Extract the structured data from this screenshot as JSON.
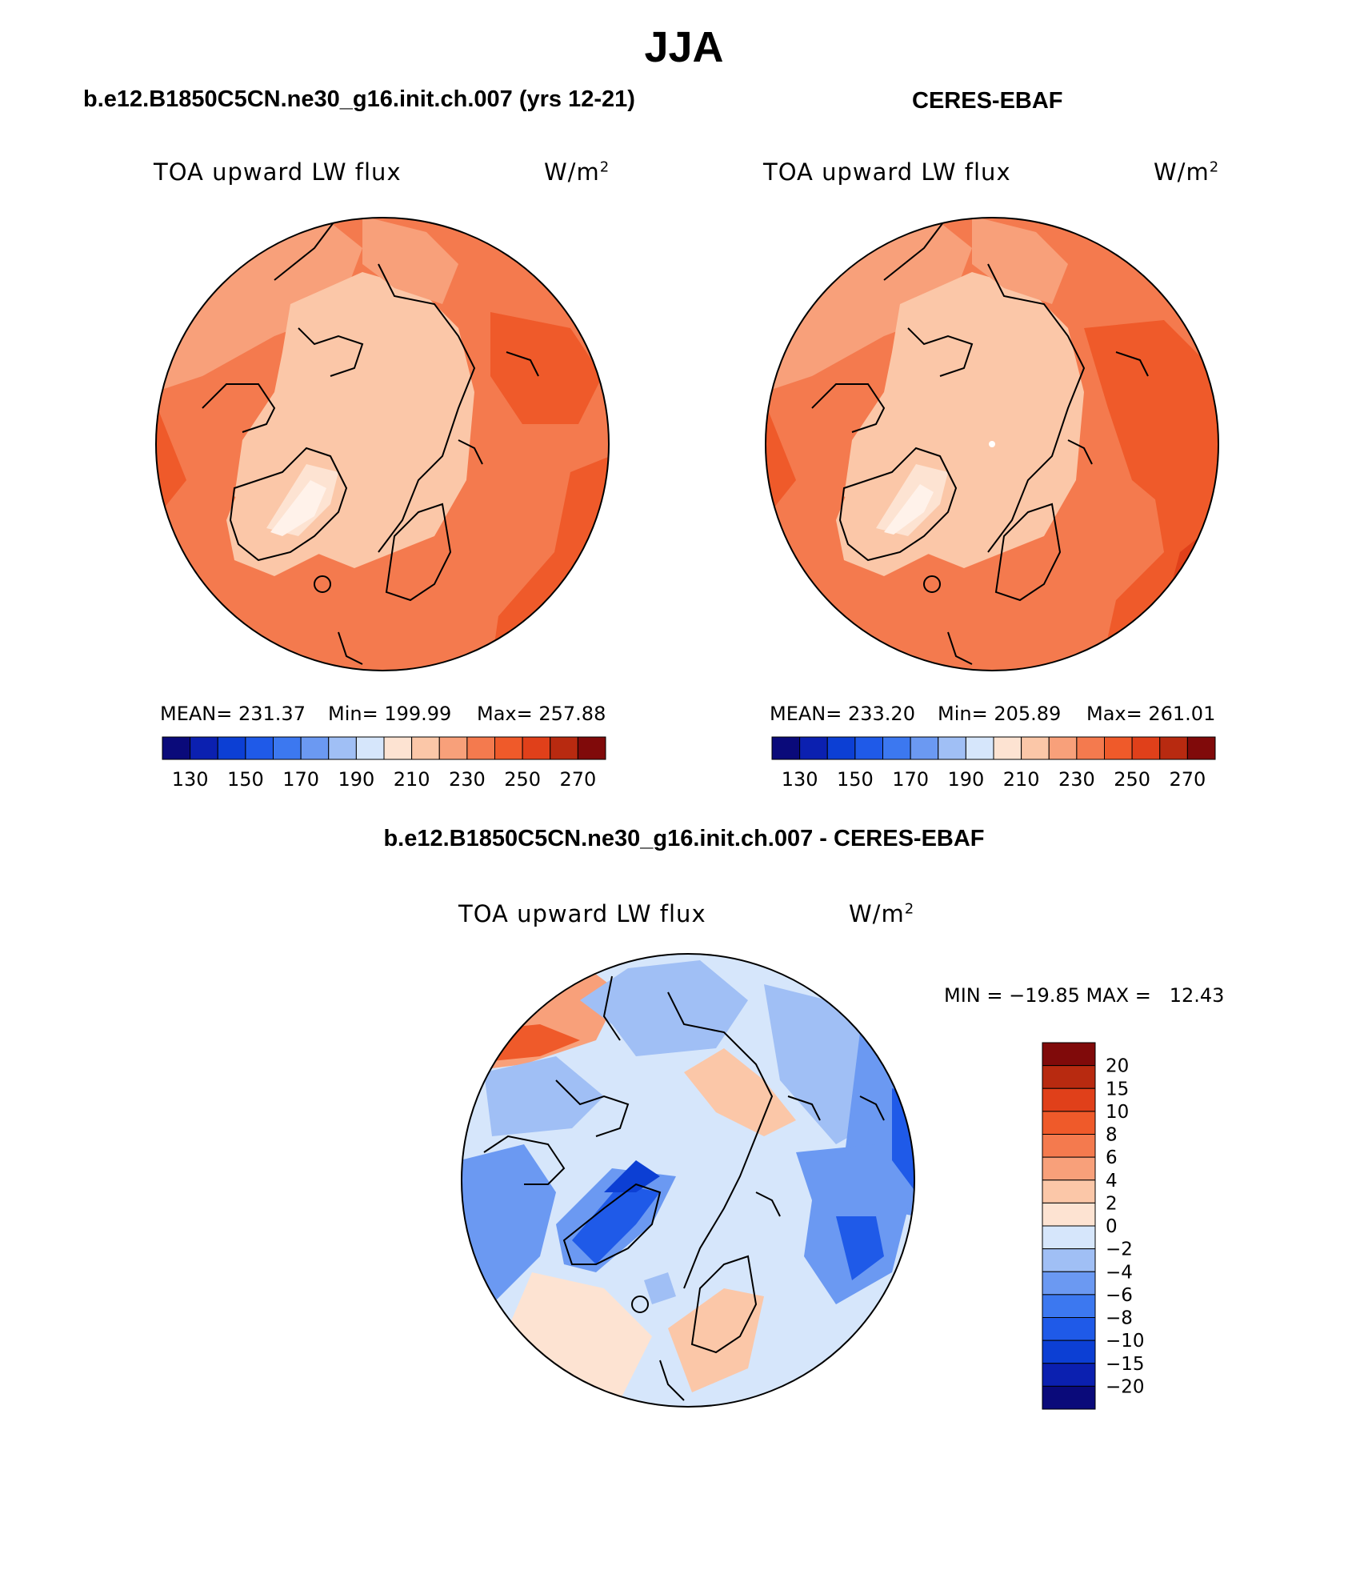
{
  "figure": {
    "season": "JJA",
    "left_title": "b.e12.B1850C5CN.ne30_g16.init.ch.007 (yrs 12-21)",
    "right_title": "CERES-EBAF",
    "diff_title": "b.e12.B1850C5CN.ne30_g16.init.ch.007 - CERES-EBAF"
  },
  "panels": [
    {
      "variable": "TOA upward LW flux",
      "units": "W/m",
      "units_sup": "2",
      "mean_text": "MEAN= 231.37",
      "min_text": "Min= 199.99",
      "max_text": "Max= 257.88"
    },
    {
      "variable": "TOA upward LW flux",
      "units": "W/m",
      "units_sup": "2",
      "mean_text": "MEAN= 233.20",
      "min_text": "Min= 205.89",
      "max_text": "Max= 261.01"
    },
    {
      "variable": "TOA upward LW flux",
      "units": "W/m",
      "units_sup": "2",
      "minmax_text": "MIN = −19.85 MAX =   12.43"
    }
  ],
  "colorbars": {
    "absolute": {
      "colors": [
        "#0a0a7a",
        "#0b20b0",
        "#0c3fd4",
        "#1f5ae8",
        "#3c78f0",
        "#6b99f2",
        "#a0bff5",
        "#d6e6fb",
        "#fde3d2",
        "#fbc7a8",
        "#f8a07a",
        "#f47a4e",
        "#ef5a2a",
        "#e0401a",
        "#b82a10",
        "#800a0a"
      ],
      "tick_labels": [
        "130",
        "150",
        "170",
        "190",
        "210",
        "230",
        "250",
        "270"
      ]
    },
    "difference": {
      "colors": [
        "#0a0a7a",
        "#0b20b0",
        "#0c3fd4",
        "#1f5ae8",
        "#3c78f0",
        "#6b99f2",
        "#a0bff5",
        "#d6e6fb",
        "#fde3d2",
        "#fbc7a8",
        "#f8a07a",
        "#f47a4e",
        "#ef5a2a",
        "#e0401a",
        "#b82a10",
        "#800a0a"
      ],
      "tick_labels": [
        "20",
        "15",
        "10",
        "8",
        "6",
        "4",
        "2",
        "0",
        "−2",
        "−4",
        "−6",
        "−8",
        "−10",
        "−15",
        "−20"
      ]
    }
  }
}
